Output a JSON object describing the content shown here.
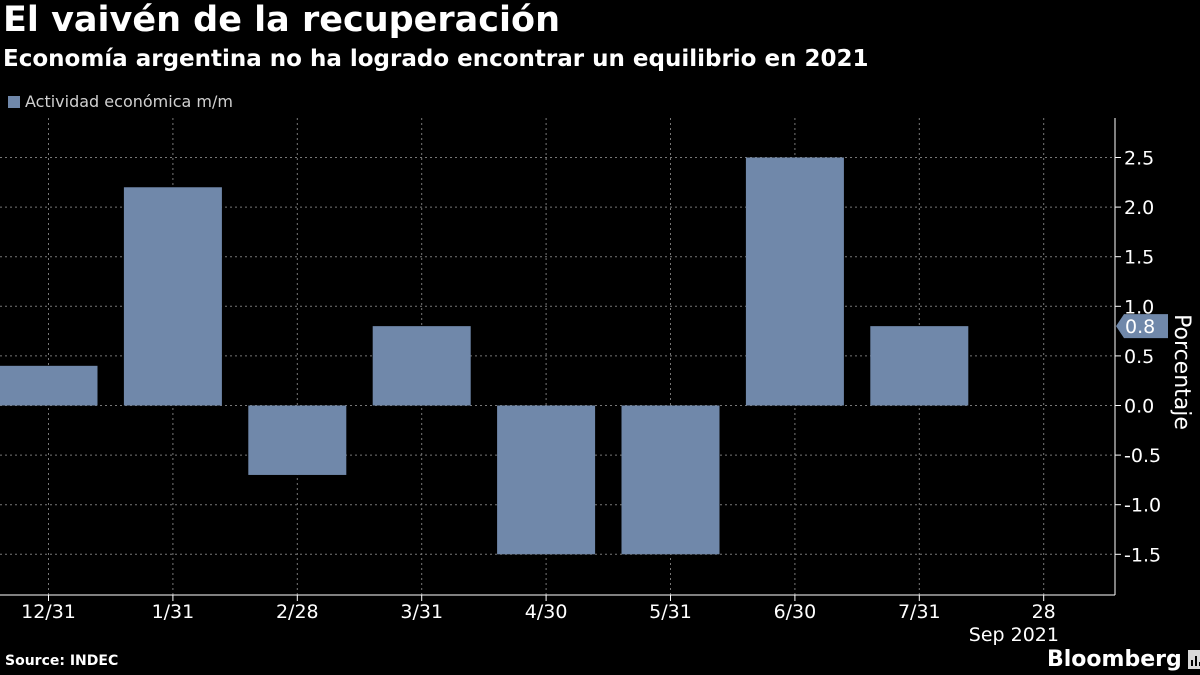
{
  "header": {
    "title": "El vaivén de la recuperación",
    "subtitle": "Economía argentina no ha logrado encontrar un equilibrio en 2021"
  },
  "footer": {
    "source": "Source: INDEC",
    "brand": "Bloomberg",
    "brand_icon": "bar-chart-icon"
  },
  "colors": {
    "background": "#000000",
    "bar": "#7088aa",
    "grid": "#777777",
    "text": "#ffffff"
  },
  "chart_data": {
    "type": "bar",
    "categories": [
      "12/31",
      "1/31",
      "2/28",
      "3/31",
      "4/30",
      "5/31",
      "6/30",
      "7/31",
      "28"
    ],
    "x_axis_sublabel": "Sep 2021",
    "series": [
      {
        "name": "Actividad económica m/m",
        "values": [
          0.4,
          2.2,
          -0.7,
          0.8,
          -1.5,
          -1.5,
          2.5,
          0.8,
          null
        ]
      }
    ],
    "ylabel": "Porcentaje",
    "ylim": [
      -1.9,
      2.9
    ],
    "yticks": [
      "2.5",
      "2.0",
      "1.5",
      "1.0",
      "0.5",
      "0.0",
      "-0.5",
      "-1.0",
      "-1.5"
    ],
    "last_value_label": "0.8",
    "grid": true,
    "legend_position": "top-left",
    "y_axis_position": "right"
  }
}
